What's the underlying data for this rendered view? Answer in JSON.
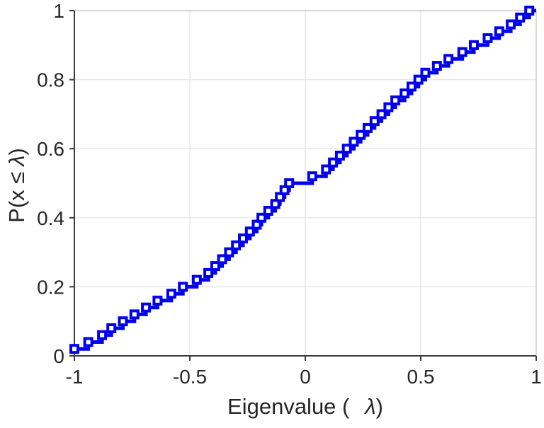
{
  "figure": {
    "background": "#ffffff",
    "kind": "empirical CDF stairstep plot of eigenvalues"
  },
  "chart_data": {
    "type": "line",
    "subtype": "ecdf-stairstep",
    "title": "",
    "xlabel": "Eigenvalue (  λ)",
    "ylabel": "P(x ≤ λ)",
    "xlabel_parts": [
      "Eigenvalue (",
      "λ",
      ")"
    ],
    "ylabel_parts": [
      "P(x ≤",
      "λ",
      ")"
    ],
    "xlim": [
      -1,
      1
    ],
    "ylim": [
      0,
      1
    ],
    "xticks": [
      -1,
      -0.5,
      0,
      0.5,
      1
    ],
    "xtick_labels": [
      "-1",
      "-0.5",
      "0",
      "0.5",
      "1"
    ],
    "yticks": [
      0,
      0.2,
      0.4,
      0.6,
      0.8,
      1
    ],
    "ytick_labels": [
      "0",
      "0.2",
      "0.4",
      "0.6",
      "0.8",
      "1"
    ],
    "grid": "on",
    "legend": "none",
    "series": [
      {
        "name": "eigenvalue-ecdf",
        "color": "#0000ee",
        "marker": "open-square",
        "step_height": 0.02,
        "n_points": 50,
        "x": [
          -1.0,
          -0.94,
          -0.88,
          -0.84,
          -0.79,
          -0.74,
          -0.69,
          -0.64,
          -0.58,
          -0.53,
          -0.47,
          -0.42,
          -0.39,
          -0.36,
          -0.33,
          -0.3,
          -0.27,
          -0.24,
          -0.21,
          -0.19,
          -0.16,
          -0.13,
          -0.11,
          -0.09,
          -0.07,
          0.03,
          0.09,
          0.12,
          0.15,
          0.18,
          0.21,
          0.24,
          0.27,
          0.3,
          0.33,
          0.36,
          0.39,
          0.43,
          0.46,
          0.49,
          0.52,
          0.57,
          0.62,
          0.68,
          0.73,
          0.79,
          0.84,
          0.89,
          0.93,
          0.97
        ],
        "y": [
          0.02,
          0.04,
          0.06,
          0.08,
          0.1,
          0.12,
          0.14,
          0.16,
          0.18,
          0.2,
          0.22,
          0.24,
          0.26,
          0.28,
          0.3,
          0.32,
          0.34,
          0.36,
          0.38,
          0.4,
          0.42,
          0.44,
          0.46,
          0.48,
          0.5,
          0.52,
          0.54,
          0.56,
          0.58,
          0.6,
          0.62,
          0.64,
          0.66,
          0.68,
          0.7,
          0.72,
          0.74,
          0.76,
          0.78,
          0.8,
          0.82,
          0.84,
          0.86,
          0.88,
          0.9,
          0.92,
          0.94,
          0.96,
          0.98,
          1.0
        ]
      }
    ],
    "colors": {
      "line": "#0000ee",
      "axis": "#3c3c3c",
      "box": "#cccccc",
      "grid": "#e6e6e6",
      "text": "#262626",
      "marker_face": "#ffffff"
    }
  }
}
